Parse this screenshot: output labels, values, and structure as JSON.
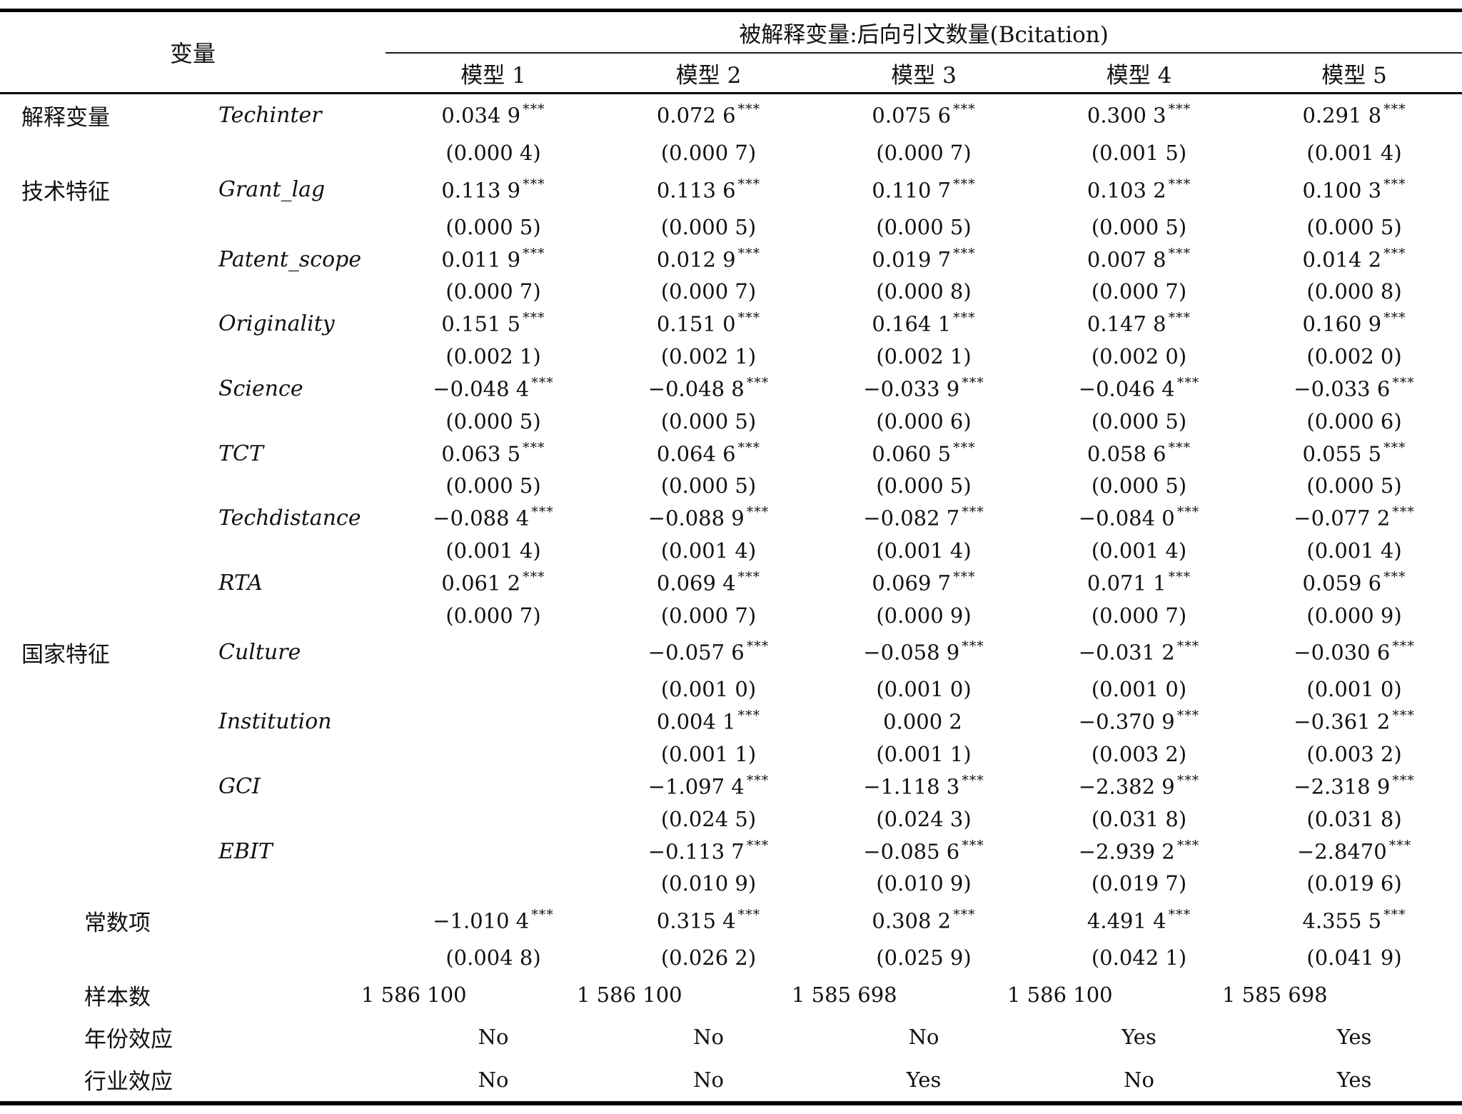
{
  "table": {
    "header": {
      "var_col_label": "变量",
      "dep_var_label": "被解释变量:后向引文数量(Bcitation)",
      "model_labels": [
        "模型 1",
        "模型 2",
        "模型 3",
        "模型 4",
        "模型 5"
      ]
    },
    "rows": [
      {
        "group": "解释变量",
        "name": "Techinter",
        "coefs": [
          "0.034 9",
          "0.072 6",
          "0.075 6",
          "0.300 3",
          "0.291 8"
        ],
        "stars": [
          "***",
          "***",
          "***",
          "***",
          "***"
        ],
        "ses": [
          "(0.000 4)",
          "(0.000 7)",
          "(0.000 7)",
          "(0.001 5)",
          "(0.001 4)"
        ]
      },
      {
        "group": "技术特征",
        "name": "Grant_lag",
        "coefs": [
          "0.113 9",
          "0.113 6",
          "0.110 7",
          "0.103 2",
          "0.100 3"
        ],
        "stars": [
          "***",
          "***",
          "***",
          "***",
          "***"
        ],
        "ses": [
          "(0.000 5)",
          "(0.000 5)",
          "(0.000 5)",
          "(0.000 5)",
          "(0.000 5)"
        ]
      },
      {
        "group": "",
        "name": "Patent_scope",
        "coefs": [
          "0.011 9",
          "0.012 9",
          "0.019 7",
          "0.007 8",
          "0.014 2"
        ],
        "stars": [
          "***",
          "***",
          "***",
          "***",
          "***"
        ],
        "ses": [
          "(0.000 7)",
          "(0.000 7)",
          "(0.000 8)",
          "(0.000 7)",
          "(0.000 8)"
        ]
      },
      {
        "group": "",
        "name": "Originality",
        "coefs": [
          "0.151 5",
          "0.151 0",
          "0.164 1",
          "0.147 8",
          "0.160 9"
        ],
        "stars": [
          "***",
          "***",
          "***",
          "***",
          "***"
        ],
        "ses": [
          "(0.002 1)",
          "(0.002 1)",
          "(0.002 1)",
          "(0.002 0)",
          "(0.002 0)"
        ]
      },
      {
        "group": "",
        "name": "Science",
        "coefs": [
          "−0.048 4",
          "−0.048 8",
          "−0.033 9",
          "−0.046 4",
          "−0.033 6"
        ],
        "stars": [
          "***",
          "***",
          "***",
          "***",
          "***"
        ],
        "ses": [
          "(0.000 5)",
          "(0.000 5)",
          "(0.000 6)",
          "(0.000 5)",
          "(0.000 6)"
        ]
      },
      {
        "group": "",
        "name": "TCT",
        "coefs": [
          "0.063 5",
          "0.064 6",
          "0.060 5",
          "0.058 6",
          "0.055 5"
        ],
        "stars": [
          "***",
          "***",
          "***",
          "***",
          "***"
        ],
        "ses": [
          "(0.000 5)",
          "(0.000 5)",
          "(0.000 5)",
          "(0.000 5)",
          "(0.000 5)"
        ]
      },
      {
        "group": "",
        "name": "Techdistance",
        "coefs": [
          "−0.088 4",
          "−0.088 9",
          "−0.082 7",
          "−0.084 0",
          "−0.077 2"
        ],
        "stars": [
          "***",
          "***",
          "***",
          "***",
          "***"
        ],
        "ses": [
          "(0.001 4)",
          "(0.001 4)",
          "(0.001 4)",
          "(0.001 4)",
          "(0.001 4)"
        ]
      },
      {
        "group": "",
        "name": "RTA",
        "coefs": [
          "0.061 2",
          "0.069 4",
          "0.069 7",
          "0.071 1",
          "0.059 6"
        ],
        "stars": [
          "***",
          "***",
          "***",
          "***",
          "***"
        ],
        "ses": [
          "(0.000 7)",
          "(0.000 7)",
          "(0.000 9)",
          "(0.000 7)",
          "(0.000 9)"
        ]
      },
      {
        "group": "国家特征",
        "name": "Culture",
        "coefs": [
          "",
          "−0.057 6",
          "−0.058 9",
          "−0.031 2",
          "−0.030 6"
        ],
        "stars": [
          "",
          "***",
          "***",
          "***",
          "***"
        ],
        "ses": [
          "",
          "(0.001 0)",
          "(0.001 0)",
          "(0.001 0)",
          "(0.001 0)"
        ]
      },
      {
        "group": "",
        "name": "Institution",
        "coefs": [
          "",
          "0.004 1",
          "0.000 2",
          "−0.370 9",
          "−0.361 2"
        ],
        "stars": [
          "",
          "***",
          "",
          "***",
          "***"
        ],
        "ses": [
          "",
          "(0.001 1)",
          "(0.001 1)",
          "(0.003 2)",
          "(0.003 2)"
        ]
      },
      {
        "group": "",
        "name": "GCI",
        "coefs": [
          "",
          "−1.097 4",
          "−1.118 3",
          "−2.382 9",
          "−2.318 9"
        ],
        "stars": [
          "",
          "***",
          "***",
          "***",
          "***"
        ],
        "ses": [
          "",
          "(0.024 5)",
          "(0.024 3)",
          "(0.031 8)",
          "(0.031 8)"
        ]
      },
      {
        "group": "",
        "name": "EBIT",
        "coefs": [
          "",
          "−0.113 7",
          "−0.085 6",
          "−2.939 2",
          "−2.8470"
        ],
        "stars": [
          "",
          "***",
          "***",
          "***",
          "***"
        ],
        "ses": [
          "",
          "(0.010 9)",
          "(0.010 9)",
          "(0.019 7)",
          "(0.019 6)"
        ]
      }
    ],
    "constant": {
      "label": "常数项",
      "coefs": [
        "−1.010 4",
        "0.315 4",
        "0.308 2",
        "4.491 4",
        "4.355 5"
      ],
      "stars": [
        "***",
        "***",
        "***",
        "***",
        "***"
      ],
      "ses": [
        "(0.004 8)",
        "(0.026 2)",
        "(0.025 9)",
        "(0.042 1)",
        "(0.041 9)"
      ]
    },
    "simple_rows": [
      {
        "label": "样本数",
        "align": "left",
        "values": [
          "1 586 100",
          "1 586 100",
          "1 585 698",
          "1 586 100",
          "1 585 698"
        ]
      },
      {
        "label": "年份效应",
        "align": "center",
        "values": [
          "No",
          "No",
          "No",
          "Yes",
          "Yes"
        ]
      },
      {
        "label": "行业效应",
        "align": "center",
        "values": [
          "No",
          "No",
          "Yes",
          "No",
          "Yes"
        ]
      }
    ]
  }
}
